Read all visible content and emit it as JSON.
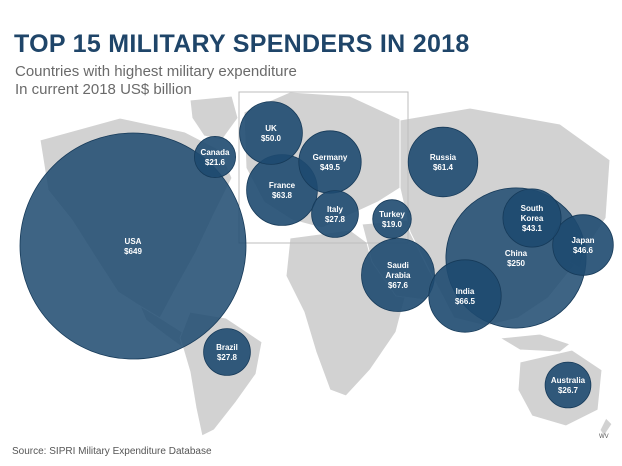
{
  "header": {
    "title": "TOP 15 MILITARY SPENDERS IN 2018",
    "subtitle_line1": "Countries with highest military expenditure",
    "subtitle_line2": "In current 2018 US$ billion"
  },
  "footer": {
    "source": "Source: SIPRI Military Expenditure Database",
    "credit": "WV"
  },
  "colors": {
    "bubble": "#1e4a70",
    "land": "#d2d2d2",
    "title": "#1f4569"
  },
  "chart_data": {
    "type": "bubble-map",
    "title": "TOP 15 MILITARY SPENDERS IN 2018",
    "subtitle": "Countries with highest military expenditure / In current 2018 US$ billion",
    "unit": "US$ billion",
    "points": [
      {
        "country": "USA",
        "value": 649,
        "label": "$649"
      },
      {
        "country": "China",
        "value": 250,
        "label": "$250"
      },
      {
        "country": "Saudi Arabia",
        "value": 67.6,
        "label": "$67.6"
      },
      {
        "country": "India",
        "value": 66.5,
        "label": "$66.5"
      },
      {
        "country": "France",
        "value": 63.8,
        "label": "$63.8"
      },
      {
        "country": "Russia",
        "value": 61.4,
        "label": "$61.4"
      },
      {
        "country": "UK",
        "value": 50.0,
        "label": "$50.0"
      },
      {
        "country": "Germany",
        "value": 49.5,
        "label": "$49.5"
      },
      {
        "country": "Japan",
        "value": 46.6,
        "label": "$46.6"
      },
      {
        "country": "South Korea",
        "value": 43.1,
        "label": "$43.1"
      },
      {
        "country": "Italy",
        "value": 27.8,
        "label": "$27.8"
      },
      {
        "country": "Brazil",
        "value": 27.8,
        "label": "$27.8"
      },
      {
        "country": "Australia",
        "value": 26.7,
        "label": "$26.7"
      },
      {
        "country": "Canada",
        "value": 21.6,
        "label": "$21.6"
      },
      {
        "country": "Turkey",
        "value": 19.0,
        "label": "$19.0"
      }
    ]
  }
}
